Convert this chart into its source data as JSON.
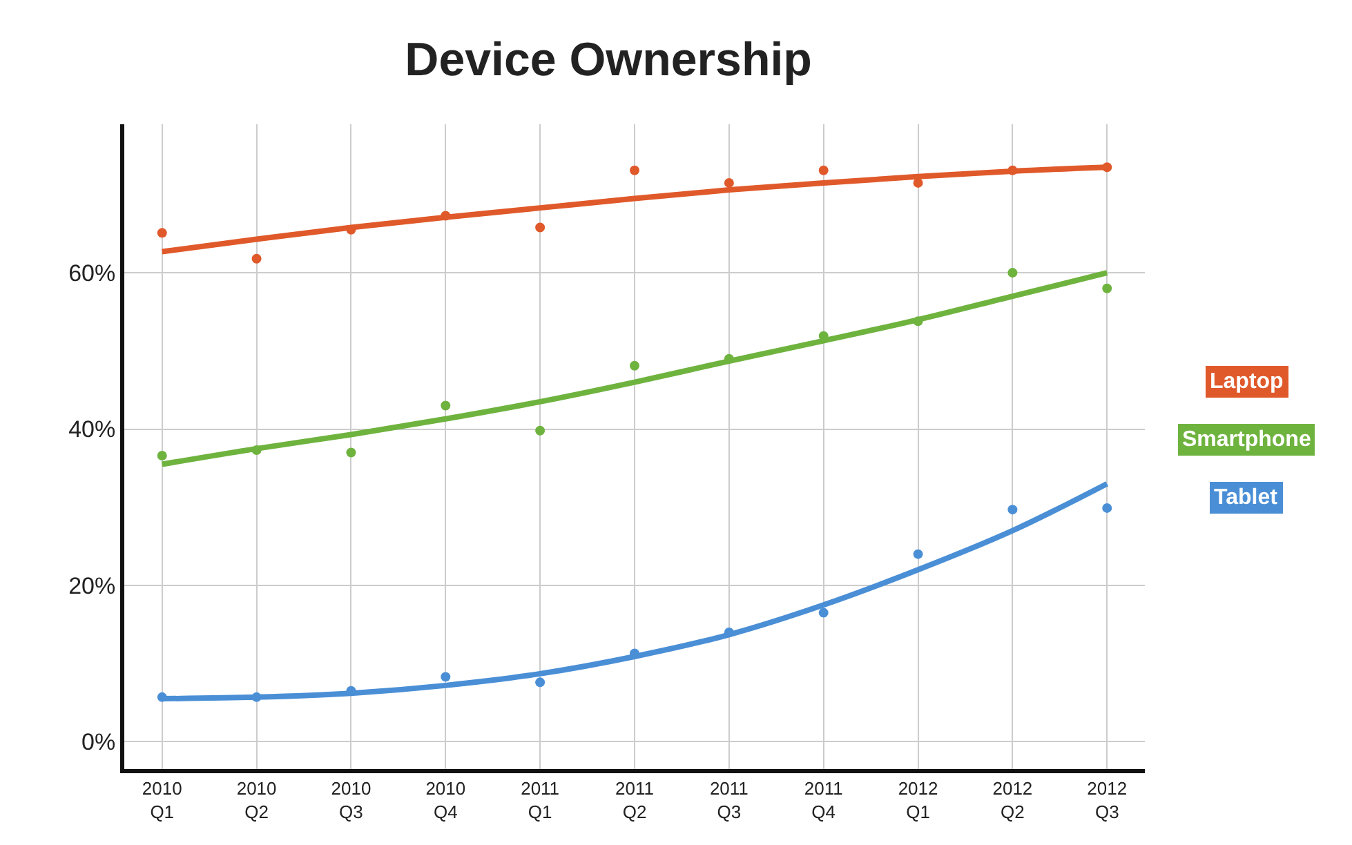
{
  "chart_data": {
    "type": "scatter",
    "title": "Device Ownership",
    "categories": [
      "2010\nQ1",
      "2010\nQ2",
      "2010\nQ3",
      "2010\nQ4",
      "2011\nQ1",
      "2011\nQ2",
      "2011\nQ3",
      "2011\nQ4",
      "2012\nQ1",
      "2012\nQ2",
      "2012\nQ3"
    ],
    "series": [
      {
        "name": "Laptop",
        "color": "#e0592a",
        "values": [
          65.1,
          61.8,
          65.5,
          67.3,
          65.8,
          73.1,
          71.5,
          73.1,
          71.5,
          73.1,
          73.5
        ]
      },
      {
        "name": "Smartphone",
        "color": "#6fb33f",
        "values": [
          36.6,
          37.3,
          37,
          43,
          39.8,
          48.1,
          49,
          51.9,
          53.8,
          60,
          58
        ]
      },
      {
        "name": "Tablet",
        "color": "#4a8fd6",
        "values": [
          5.7,
          5.7,
          6.5,
          8.3,
          7.6,
          11.3,
          14,
          16.5,
          24,
          29.7,
          29.9
        ]
      },
      {
        "type": "line",
        "marker": "none",
        "color": "#e0592a",
        "values": [
          62.7,
          64.3,
          65.8,
          67.1,
          68.3,
          69.5,
          70.6,
          71.5,
          72.3,
          73,
          73.5
        ]
      },
      {
        "type": "line",
        "marker": "none",
        "color": "#6fb33f",
        "values": [
          35.5,
          37.5,
          39.3,
          41.3,
          43.5,
          46,
          48.7,
          51.3,
          54,
          57,
          60
        ]
      },
      {
        "type": "line",
        "marker": "none",
        "color": "#4a8fd6",
        "values": [
          5.5,
          5.7,
          6.2,
          7.2,
          8.7,
          10.9,
          13.7,
          17.5,
          22,
          27,
          33
        ]
      }
    ],
    "ylim": [
      -3.5,
      79
    ],
    "yticks": [
      {
        "value": 0,
        "label": "0%"
      },
      {
        "value": 20,
        "label": "20%"
      },
      {
        "value": 40,
        "label": "40%"
      },
      {
        "value": 60,
        "label": "60%"
      }
    ],
    "grid": true,
    "legend": "right",
    "marker": "circle"
  }
}
